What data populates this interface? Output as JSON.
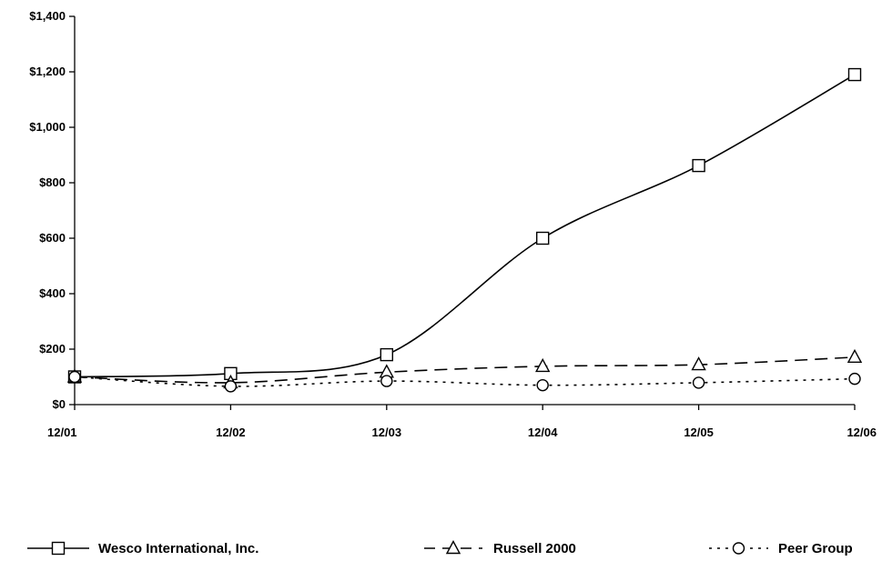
{
  "chart_data": {
    "type": "line",
    "title": "",
    "xlabel": "",
    "ylabel": "",
    "categories": [
      "12/01",
      "12/02",
      "12/03",
      "12/04",
      "12/05",
      "12/06"
    ],
    "ylim": [
      0,
      1400
    ],
    "yticks": [
      "$0",
      "$200",
      "$400",
      "$600",
      "$800",
      "$1,000",
      "$1,200",
      "$1,400"
    ],
    "ytick_values": [
      0,
      200,
      400,
      600,
      800,
      1000,
      1200,
      1400
    ],
    "grid": false,
    "legend_position": "bottom",
    "series": [
      {
        "name": "Wesco International, Inc.",
        "values": [
          100,
          112,
          180,
          600,
          862,
          1190
        ],
        "marker": "square",
        "line": "solid"
      },
      {
        "name": "Russell 2000",
        "values": [
          100,
          79,
          117,
          138,
          144,
          171
        ],
        "marker": "triangle",
        "line": "dashed"
      },
      {
        "name": "Peer Group",
        "values": [
          100,
          66,
          85,
          70,
          79,
          93
        ],
        "marker": "circle",
        "line": "dotted"
      }
    ]
  }
}
